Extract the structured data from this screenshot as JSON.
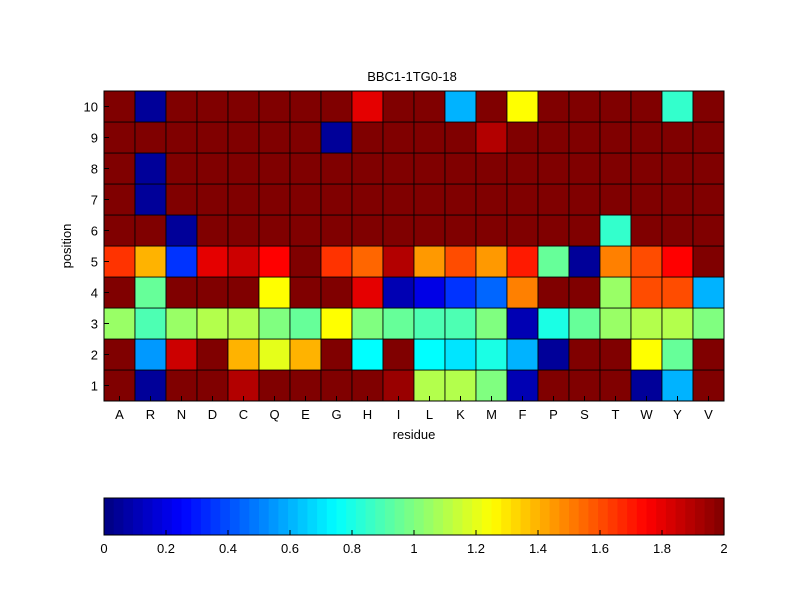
{
  "chart_data": {
    "type": "heatmap",
    "title": "BBC1-1TG0-18",
    "xlabel": "residue",
    "ylabel": "position",
    "x_categories": [
      "A",
      "R",
      "N",
      "D",
      "C",
      "Q",
      "E",
      "G",
      "H",
      "I",
      "L",
      "K",
      "M",
      "F",
      "P",
      "S",
      "T",
      "W",
      "Y",
      "V"
    ],
    "y_categories": [
      "1",
      "2",
      "3",
      "4",
      "5",
      "6",
      "7",
      "8",
      "9",
      "10"
    ],
    "values": [
      [
        2.0,
        0.05,
        2.0,
        2.0,
        1.9,
        2.0,
        2.0,
        2.0,
        2.0,
        1.95,
        1.1,
        1.1,
        1.0,
        0.1,
        2.0,
        2.0,
        2.0,
        0.05,
        0.6,
        2.0
      ],
      [
        2.0,
        0.55,
        1.85,
        2.0,
        1.4,
        1.2,
        1.4,
        2.0,
        0.75,
        2.0,
        0.75,
        0.7,
        0.8,
        0.6,
        0.05,
        2.0,
        2.0,
        1.25,
        0.95,
        2.0
      ],
      [
        1.05,
        0.9,
        1.05,
        1.1,
        1.1,
        1.0,
        0.95,
        1.25,
        1.0,
        0.95,
        0.9,
        0.9,
        1.0,
        0.1,
        0.8,
        0.95,
        1.05,
        1.1,
        1.1,
        1.0
      ],
      [
        2.0,
        0.95,
        2.0,
        2.0,
        2.0,
        1.25,
        2.0,
        2.0,
        1.8,
        0.1,
        0.2,
        0.35,
        0.45,
        1.5,
        2.0,
        2.0,
        1.05,
        1.6,
        1.6,
        0.6
      ],
      [
        1.65,
        1.4,
        0.35,
        1.8,
        1.85,
        1.75,
        2.0,
        1.65,
        1.55,
        1.9,
        1.45,
        1.6,
        1.45,
        1.7,
        0.95,
        0.05,
        1.5,
        1.6,
        1.75,
        2.0
      ],
      [
        2.0,
        2.0,
        0.05,
        2.0,
        2.0,
        2.0,
        2.0,
        2.0,
        2.0,
        2.0,
        2.0,
        2.0,
        2.0,
        2.0,
        2.0,
        2.0,
        0.85,
        2.0,
        2.0,
        2.0
      ],
      [
        2.0,
        0.05,
        2.0,
        2.0,
        2.0,
        2.0,
        2.0,
        2.0,
        2.0,
        2.0,
        2.0,
        2.0,
        2.0,
        2.0,
        2.0,
        2.0,
        2.0,
        2.0,
        2.0,
        2.0
      ],
      [
        2.0,
        0.05,
        2.0,
        2.0,
        2.0,
        2.0,
        2.0,
        2.0,
        2.0,
        2.0,
        2.0,
        2.0,
        2.0,
        2.0,
        2.0,
        2.0,
        2.0,
        2.0,
        2.0,
        2.0
      ],
      [
        2.0,
        2.0,
        2.0,
        2.0,
        2.0,
        2.0,
        2.0,
        0.05,
        2.0,
        2.0,
        2.0,
        2.0,
        1.9,
        2.0,
        2.0,
        2.0,
        2.0,
        2.0,
        2.0,
        2.0
      ],
      [
        2.0,
        0.05,
        2.0,
        2.0,
        2.0,
        2.0,
        2.0,
        2.0,
        1.8,
        2.0,
        2.0,
        0.6,
        2.0,
        1.25,
        2.0,
        2.0,
        2.0,
        2.0,
        0.85,
        2.0
      ]
    ],
    "colorbar": {
      "colormap": "jet",
      "range": [
        0,
        2
      ],
      "ticks": [
        0,
        0.2,
        0.4,
        0.6,
        0.8,
        1,
        1.2,
        1.4,
        1.6,
        1.8,
        2
      ],
      "tick_labels": [
        "0",
        "0.2",
        "0.4",
        "0.6",
        "0.8",
        "1",
        "1.2",
        "1.4",
        "1.6",
        "1.8",
        "2"
      ],
      "orientation": "horizontal",
      "placement": "bottom"
    },
    "grid": true
  }
}
